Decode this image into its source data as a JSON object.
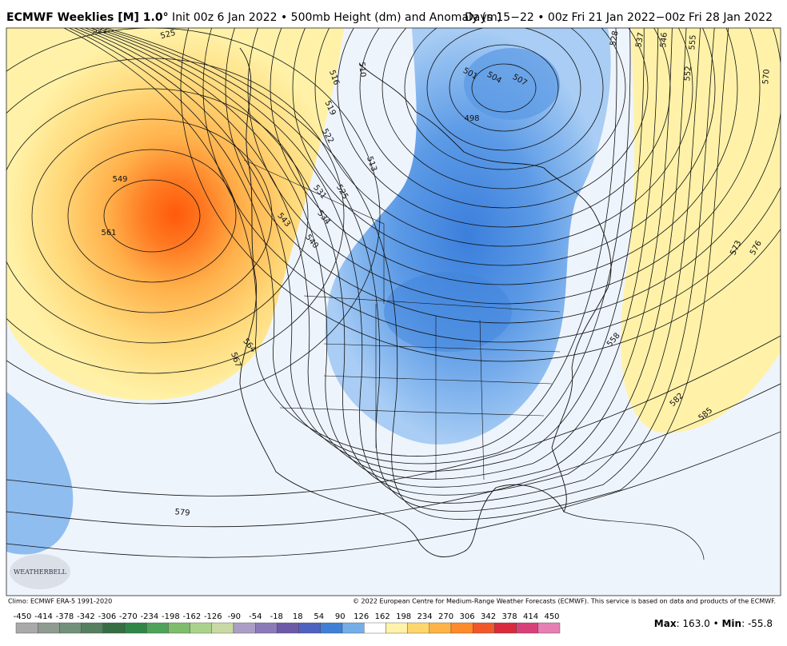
{
  "header": {
    "title_bold": "ECMWF Weeklies [M] 1.0°",
    "title_rest": " Init 00z 6 Jan 2022 • 500mb Height (dm) and Anomaly (m)",
    "valid": "Days 15−22 • 00z Fri 21 Jan 2022−00z Fri 28 Jan 2022"
  },
  "map": {
    "contour_labels": [
      "522",
      "525",
      "516",
      "510",
      "519",
      "522",
      "513",
      "531",
      "525",
      "534",
      "543",
      "540",
      "549",
      "561",
      "564",
      "567",
      "528",
      "537",
      "546",
      "555",
      "552",
      "570",
      "501",
      "504",
      "507",
      "498",
      "573",
      "576",
      "558",
      "582",
      "585",
      "579"
    ],
    "logo": "WEATHERBELL"
  },
  "footer": {
    "climo": "Climo: ECMWF ERA-5 1991-2020",
    "copyright": "© 2022 European Centre for Medium-Range Weather Forecasts (ECMWF). This service is based on data and products of the ECMWF.",
    "max_label": "Max",
    "max_value": ": 163.0 • ",
    "min_label": "Min",
    "min_value": ": -55.8"
  },
  "colorbar": {
    "labels": [
      -450,
      -414,
      -378,
      -342,
      -306,
      -270,
      -234,
      -198,
      -162,
      -126,
      -90,
      -54,
      -18,
      18,
      54,
      90,
      126,
      162,
      198,
      234,
      270,
      306,
      342,
      378,
      414,
      450
    ],
    "colors": [
      "#a9a9a9",
      "#8f9a90",
      "#72907a",
      "#557f5f",
      "#366e44",
      "#2f8646",
      "#4ea35a",
      "#7dbd6c",
      "#aad28c",
      "#c8d9a4",
      "#ab9ec6",
      "#8c7ab8",
      "#6c5aa8",
      "#4f62c0",
      "#3f80d6",
      "#74aee9",
      "#ffffff",
      "#fff2aa",
      "#ffd66c",
      "#ffb347",
      "#ff8a2a",
      "#f0582a",
      "#d82a3c",
      "#d8407a",
      "#e57fb4"
    ]
  }
}
